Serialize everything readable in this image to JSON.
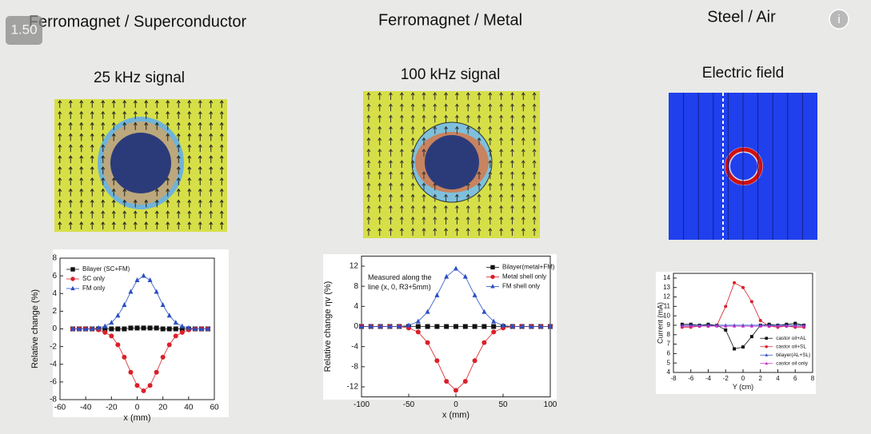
{
  "player": {
    "speed": "1.50",
    "info": "i"
  },
  "headings": [
    {
      "title": "Ferromagnet / Superconductor",
      "subtitle": "25 kHz signal"
    },
    {
      "title": "Ferromagnet / Metal",
      "subtitle": "100 kHz signal"
    },
    {
      "title": "Steel / Air",
      "subtitle": "Electric field"
    }
  ],
  "chart_data": [
    {
      "type": "line",
      "xlabel": "x (mm)",
      "ylabel": "Relative change (%)",
      "x": [
        -50,
        -45,
        -40,
        -35,
        -30,
        -25,
        -20,
        -15,
        -10,
        -5,
        0,
        5,
        10,
        15,
        20,
        25,
        30,
        35,
        40,
        45,
        50,
        55
      ],
      "xlim": [
        -60,
        60
      ],
      "xticks": [
        -60,
        -40,
        -20,
        0,
        20,
        40,
        60
      ],
      "ylim": [
        -8,
        8
      ],
      "yticks": [
        -8,
        -6,
        -4,
        -2,
        0,
        2,
        4,
        6,
        8
      ],
      "legend": "upper left",
      "series": [
        {
          "name": "Bilayer (SC+FM)",
          "color": "#111111",
          "marker": "square",
          "values": [
            0,
            0,
            0,
            0,
            0,
            0,
            0,
            0,
            0,
            0.1,
            0.1,
            0.1,
            0.1,
            0.1,
            0,
            0,
            0,
            0,
            0,
            0,
            0,
            0
          ]
        },
        {
          "name": "SC only",
          "color": "#d9202a",
          "marker": "circle",
          "values": [
            0,
            0,
            0,
            0,
            -0.1,
            -0.4,
            -0.8,
            -1.8,
            -3.2,
            -4.9,
            -6.4,
            -7,
            -6.4,
            -4.9,
            -3.2,
            -1.8,
            -0.8,
            -0.4,
            -0.1,
            0,
            0,
            0
          ]
        },
        {
          "name": "FM only",
          "color": "#2a4fc4",
          "marker": "triangle",
          "values": [
            0,
            0,
            0,
            0,
            0.1,
            0.3,
            0.7,
            1.5,
            2.7,
            4.2,
            5.5,
            6,
            5.5,
            4.2,
            2.7,
            1.5,
            0.7,
            0.3,
            0.1,
            0,
            0,
            0
          ]
        }
      ]
    },
    {
      "type": "line",
      "xlabel": "x (mm)",
      "ylabel": "Relative change ηv (%)",
      "annotation": [
        "Measured  along the",
        "line (x, 0, R3+5mm)"
      ],
      "x": [
        -100,
        -90,
        -80,
        -70,
        -60,
        -50,
        -40,
        -30,
        -20,
        -10,
        0,
        10,
        20,
        30,
        40,
        50,
        60,
        70,
        80,
        90,
        100
      ],
      "xlim": [
        -100,
        100
      ],
      "xticks": [
        -100,
        -50,
        0,
        50,
        100
      ],
      "ylim": [
        -14,
        14
      ],
      "yticks": [
        -12,
        -8,
        -4,
        0,
        4,
        8,
        12
      ],
      "legend": "upper right",
      "series": [
        {
          "name": "Bilayer(metal+FM)",
          "color": "#111111",
          "marker": "square",
          "values": [
            0,
            0,
            0,
            0,
            0,
            0,
            0,
            0,
            0,
            0,
            0,
            0,
            0,
            0,
            0,
            0,
            0,
            0,
            0,
            0,
            0
          ]
        },
        {
          "name": "Metal shell only",
          "color": "#d9202a",
          "marker": "circle",
          "values": [
            0,
            0,
            0,
            0,
            0,
            -0.3,
            -1.1,
            -3.2,
            -6.8,
            -10.9,
            -12.7,
            -10.9,
            -6.8,
            -3.2,
            -1.1,
            -0.3,
            0,
            0,
            0,
            0,
            0
          ]
        },
        {
          "name": "FM shell only",
          "color": "#2a4fc4",
          "marker": "triangle",
          "values": [
            0,
            0,
            0,
            0,
            0,
            0.2,
            1,
            2.9,
            6.2,
            9.9,
            11.5,
            9.9,
            6.2,
            2.9,
            1,
            0.2,
            0,
            0,
            0,
            0,
            0
          ]
        }
      ]
    },
    {
      "type": "line",
      "xlabel": "Y (cm)",
      "ylabel": "Current (mA)",
      "x": [
        -7,
        -6,
        -5,
        -4,
        -3,
        -2,
        -1,
        0,
        1,
        2,
        3,
        4,
        5,
        6,
        7
      ],
      "xlim": [
        -8,
        8
      ],
      "xticks": [
        -8,
        -6,
        -4,
        -2,
        0,
        2,
        4,
        6,
        8
      ],
      "ylim": [
        4,
        14.5
      ],
      "yticks": [
        4,
        5,
        6,
        7,
        8,
        9,
        10,
        11,
        12,
        13,
        14
      ],
      "legend": "lower right",
      "series": [
        {
          "name": "castor oil+AL",
          "color": "#111111",
          "marker": "square",
          "values": [
            9.1,
            9.1,
            9,
            9.1,
            9,
            8.5,
            6.5,
            6.7,
            7.8,
            9,
            9.1,
            9,
            9.1,
            9.2,
            9
          ]
        },
        {
          "name": "castor oil+SL",
          "color": "#d9202a",
          "marker": "circle",
          "values": [
            8.8,
            8.8,
            8.9,
            8.9,
            9,
            11,
            13.5,
            13,
            11.5,
            9.5,
            8.9,
            8.8,
            8.9,
            8.8,
            8.8
          ]
        },
        {
          "name": "bilayer(AL+SL)",
          "color": "#2a4fc4",
          "marker": "triangle",
          "values": [
            9,
            9,
            9,
            9,
            9,
            9,
            9,
            9,
            9,
            9,
            9,
            9,
            9,
            9,
            9
          ]
        },
        {
          "name": "castor oil only",
          "color": "#c02cc8",
          "marker": "triangle",
          "values": [
            8.9,
            8.9,
            8.9,
            8.9,
            8.9,
            8.9,
            8.9,
            8.9,
            8.9,
            8.9,
            8.9,
            8.9,
            8.9,
            8.9,
            8.9
          ]
        }
      ]
    }
  ]
}
